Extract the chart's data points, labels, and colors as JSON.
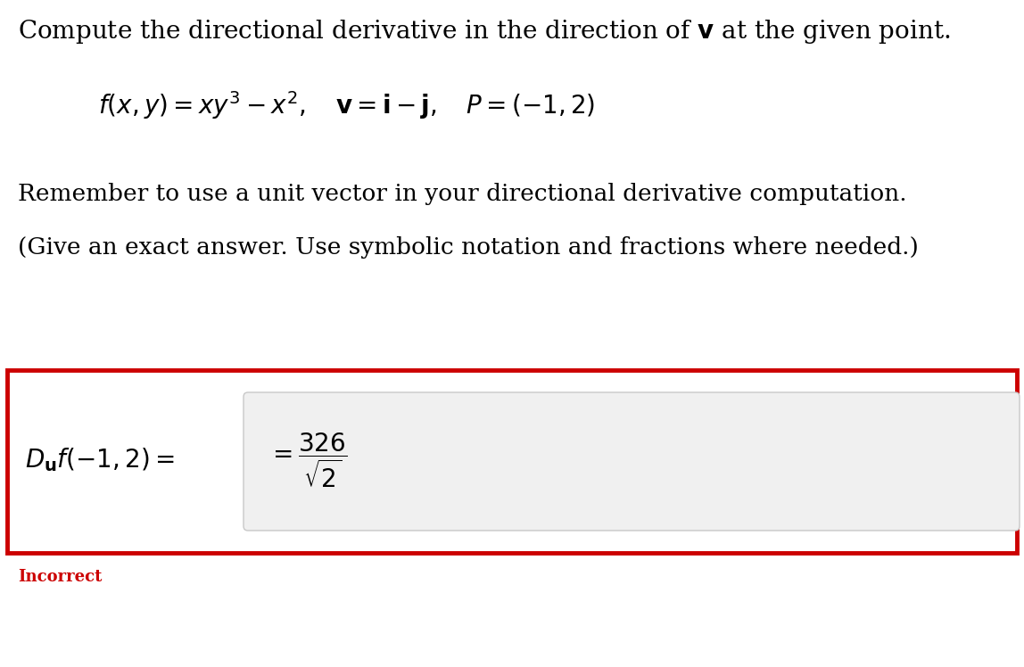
{
  "background_color": "#ffffff",
  "title_text": "Compute the directional derivative in the direction of $\\mathbf{v}$ at the given point.",
  "formula_line": "$f(x, y) = xy^3 - x^2, \\quad \\mathbf{v} = \\mathbf{i} - \\mathbf{j}, \\quad P = (-1, 2)$",
  "reminder_text": "Remember to use a unit vector in your directional derivative computation.",
  "instruction_text": "(Give an exact answer. Use symbolic notation and fractions where needed.)",
  "answer_label": "$D_{\\mathbf{u}}f(-1, 2) =$",
  "answer_equals": "$= \\dfrac{326}{\\sqrt{2}}$",
  "incorrect_text": "Incorrect",
  "box_bg_color": "#f0f0f0",
  "box_border_color": "#cc0000",
  "incorrect_color": "#cc0000",
  "text_color": "#000000",
  "title_fontsize": 20,
  "body_fontsize": 19,
  "formula_fontsize": 20,
  "answer_label_fontsize": 20,
  "answer_eq_fontsize": 20,
  "incorrect_fontsize": 13,
  "fig_width": 11.48,
  "fig_height": 7.48,
  "dpi": 100
}
